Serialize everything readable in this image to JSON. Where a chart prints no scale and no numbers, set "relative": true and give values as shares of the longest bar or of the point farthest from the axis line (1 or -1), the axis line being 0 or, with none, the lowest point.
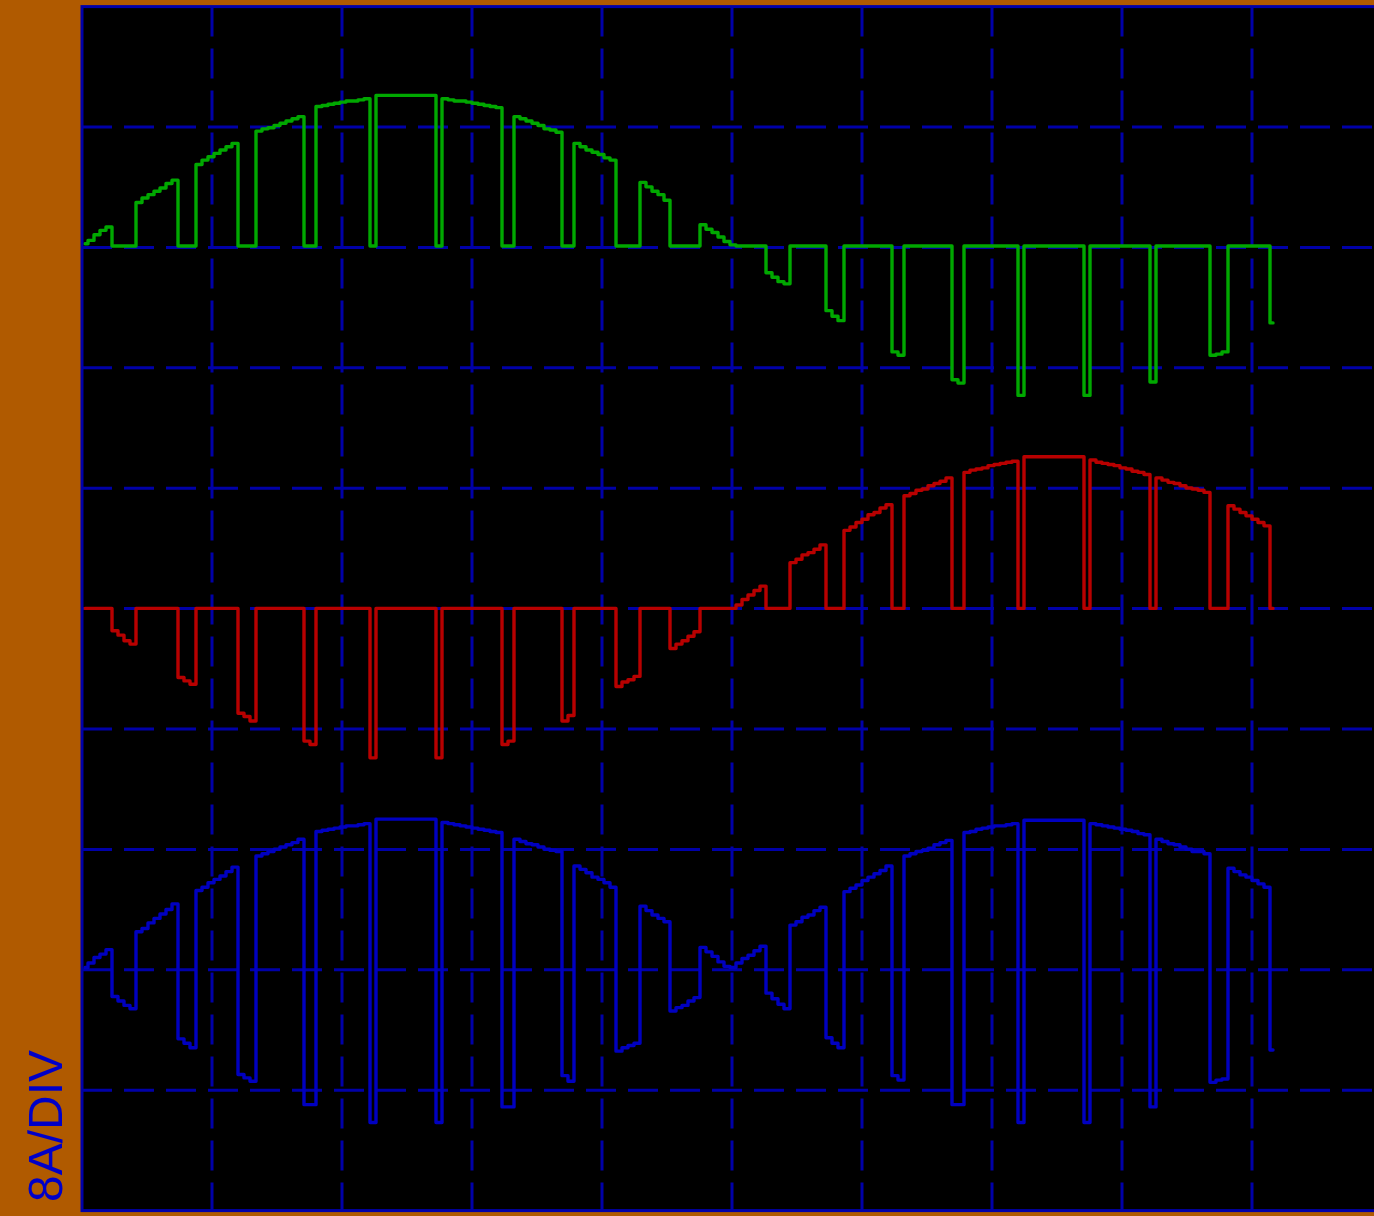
{
  "chart_data": {
    "type": "step",
    "ylabel": "8A/DIV",
    "relative": true,
    "grid": true,
    "categories": [
      null,
      null,
      null,
      null,
      null,
      null,
      null,
      null,
      null,
      null,
      null,
      null,
      null,
      null,
      null,
      null,
      null,
      null,
      null,
      null,
      null,
      null,
      null,
      null,
      null,
      null,
      null,
      null,
      null,
      null,
      null,
      null,
      null,
      null,
      null,
      null,
      null,
      null,
      null,
      null,
      null,
      null,
      null,
      null,
      null,
      null,
      null,
      null,
      null,
      null,
      null,
      null,
      null,
      null,
      null,
      null,
      null,
      null,
      null,
      null,
      null,
      null,
      null,
      null,
      null,
      null,
      null,
      null,
      null,
      null,
      null,
      null,
      null,
      null,
      null,
      null,
      null,
      null,
      null,
      null,
      null,
      null,
      null,
      null,
      null,
      null,
      null,
      null,
      null,
      null,
      null,
      null,
      null,
      null,
      null,
      null,
      null,
      null,
      null,
      null,
      null,
      null,
      null,
      null,
      null,
      null,
      null,
      null,
      null,
      null,
      null,
      null,
      null,
      null,
      null,
      null,
      null,
      null,
      null,
      null,
      null,
      null,
      null,
      null,
      null,
      null,
      null,
      null,
      null,
      null,
      null,
      null,
      null,
      null,
      null,
      null,
      null,
      null,
      null,
      null,
      null,
      null,
      null,
      null,
      null,
      null,
      null,
      null,
      null,
      null,
      null,
      null,
      null,
      null,
      null,
      null,
      null,
      null,
      null,
      null,
      null,
      null,
      null,
      null,
      null,
      null,
      null,
      null,
      null,
      null,
      null,
      null,
      null,
      null,
      null,
      null,
      null,
      null,
      null,
      null,
      null,
      null,
      null,
      null,
      null,
      null,
      null,
      null,
      null,
      null,
      null,
      null,
      null,
      null,
      null,
      null,
      null,
      null,
      null
    ],
    "series": [
      {
        "color": "#00a800",
        "values": [
          0.867,
          0.87,
          0.875,
          0.879,
          0.882,
          0.865,
          0.865,
          0.865,
          0.865,
          0.904,
          0.908,
          0.911,
          0.914,
          0.917,
          0.921,
          0.924,
          0.865,
          0.865,
          0.865,
          0.938,
          0.942,
          0.945,
          0.948,
          0.951,
          0.954,
          0.957,
          0.865,
          0.865,
          0.865,
          0.968,
          0.97,
          0.971,
          0.973,
          0.975,
          0.977,
          0.979,
          0.981,
          0.865,
          0.865,
          0.99,
          0.991,
          0.992,
          0.993,
          0.994,
          0.995,
          0.995,
          0.996,
          0.997,
          0.865,
          1,
          1,
          1,
          1,
          1,
          1,
          1,
          1,
          1,
          1,
          0.865,
          0.997,
          0.996,
          0.995,
          0.995,
          0.994,
          0.993,
          0.992,
          0.991,
          0.99,
          0.989,
          0.865,
          0.865,
          0.981,
          0.979,
          0.977,
          0.975,
          0.973,
          0.97,
          0.969,
          0.967,
          0.865,
          0.865,
          0.957,
          0.954,
          0.951,
          0.949,
          0.947,
          0.944,
          0.942,
          0.865,
          0.865,
          0.865,
          0.865,
          0.922,
          0.918,
          0.914,
          0.911,
          0.906,
          0.865,
          0.865,
          0.865,
          0.865,
          0.865,
          0.884,
          0.88,
          0.877,
          0.873,
          0.869,
          0.866,
          0.865,
          0.865,
          0.865,
          0.865,
          0.865,
          0.841,
          0.837,
          0.833,
          0.831,
          0.865,
          0.865,
          0.865,
          0.865,
          0.865,
          0.865,
          0.807,
          0.802,
          0.798,
          0.865,
          0.865,
          0.865,
          0.865,
          0.865,
          0.865,
          0.865,
          0.865,
          0.77,
          0.767,
          0.865,
          0.865,
          0.865,
          0.865,
          0.865,
          0.865,
          0.865,
          0.865,
          0.745,
          0.742,
          0.865,
          0.865,
          0.865,
          0.865,
          0.865,
          0.865,
          0.865,
          0.865,
          0.865,
          0.731,
          0.865,
          0.865,
          0.865,
          0.865,
          0.865,
          0.865,
          0.865,
          0.865,
          0.865,
          0.865,
          0.731,
          0.865,
          0.865,
          0.865,
          0.865,
          0.865,
          0.865,
          0.865,
          0.865,
          0.865,
          0.865,
          0.743,
          0.865,
          0.865,
          0.865,
          0.865,
          0.865,
          0.865,
          0.865,
          0.865,
          0.865,
          0.767,
          0.768,
          0.77,
          0.865,
          0.865,
          0.865,
          0.865,
          0.865,
          0.865,
          0.865,
          0.796
        ]
      },
      {
        "color": "#b80000",
        "values": [
          0.54,
          0.54,
          0.54,
          0.54,
          0.54,
          0.52,
          0.516,
          0.511,
          0.508,
          0.54,
          0.54,
          0.54,
          0.54,
          0.54,
          0.54,
          0.54,
          0.478,
          0.475,
          0.472,
          0.54,
          0.54,
          0.54,
          0.54,
          0.54,
          0.54,
          0.54,
          0.446,
          0.443,
          0.439,
          0.54,
          0.54,
          0.54,
          0.54,
          0.54,
          0.54,
          0.54,
          0.54,
          0.421,
          0.418,
          0.54,
          0.54,
          0.54,
          0.54,
          0.54,
          0.54,
          0.54,
          0.54,
          0.54,
          0.406,
          0.54,
          0.54,
          0.54,
          0.54,
          0.54,
          0.54,
          0.54,
          0.54,
          0.54,
          0.54,
          0.406,
          0.54,
          0.54,
          0.54,
          0.54,
          0.54,
          0.54,
          0.54,
          0.54,
          0.54,
          0.54,
          0.418,
          0.421,
          0.54,
          0.54,
          0.54,
          0.54,
          0.54,
          0.54,
          0.54,
          0.54,
          0.439,
          0.444,
          0.54,
          0.54,
          0.54,
          0.54,
          0.54,
          0.54,
          0.54,
          0.47,
          0.474,
          0.476,
          0.479,
          0.54,
          0.54,
          0.54,
          0.54,
          0.54,
          0.504,
          0.508,
          0.511,
          0.515,
          0.519,
          0.54,
          0.54,
          0.54,
          0.54,
          0.54,
          0.54,
          0.543,
          0.548,
          0.552,
          0.556,
          0.56,
          0.54,
          0.54,
          0.54,
          0.54,
          0.581,
          0.584,
          0.588,
          0.59,
          0.593,
          0.597,
          0.54,
          0.54,
          0.54,
          0.61,
          0.613,
          0.617,
          0.62,
          0.624,
          0.626,
          0.63,
          0.633,
          0.54,
          0.54,
          0.641,
          0.643,
          0.646,
          0.647,
          0.65,
          0.652,
          0.654,
          0.657,
          0.54,
          0.54,
          0.662,
          0.664,
          0.665,
          0.666,
          0.668,
          0.669,
          0.67,
          0.671,
          0.672,
          0.54,
          0.676,
          0.676,
          0.676,
          0.676,
          0.676,
          0.676,
          0.676,
          0.676,
          0.676,
          0.676,
          0.54,
          0.673,
          0.671,
          0.67,
          0.669,
          0.668,
          0.666,
          0.665,
          0.663,
          0.662,
          0.66,
          0.54,
          0.657,
          0.655,
          0.653,
          0.652,
          0.65,
          0.648,
          0.647,
          0.646,
          0.644,
          0.54,
          0.54,
          0.54,
          0.632,
          0.629,
          0.626,
          0.623,
          0.62,
          0.617,
          0.614,
          0.54
        ]
      },
      {
        "color": "#0000c0",
        "values": [
          0.218,
          0.222,
          0.227,
          0.23,
          0.234,
          0.192,
          0.188,
          0.184,
          0.181,
          0.25,
          0.253,
          0.258,
          0.262,
          0.266,
          0.27,
          0.275,
          0.154,
          0.15,
          0.146,
          0.287,
          0.29,
          0.294,
          0.297,
          0.3,
          0.304,
          0.308,
          0.122,
          0.119,
          0.116,
          0.318,
          0.32,
          0.322,
          0.324,
          0.326,
          0.328,
          0.33,
          0.333,
          0.095,
          0.095,
          0.34,
          0.341,
          0.342,
          0.343,
          0.344,
          0.345,
          0.345,
          0.346,
          0.347,
          0.079,
          0.351,
          0.351,
          0.351,
          0.351,
          0.351,
          0.351,
          0.351,
          0.351,
          0.351,
          0.351,
          0.079,
          0.348,
          0.347,
          0.346,
          0.345,
          0.344,
          0.343,
          0.342,
          0.341,
          0.34,
          0.339,
          0.093,
          0.093,
          0.333,
          0.331,
          0.329,
          0.328,
          0.326,
          0.324,
          0.323,
          0.322,
          0.121,
          0.116,
          0.309,
          0.306,
          0.303,
          0.299,
          0.297,
          0.294,
          0.29,
          0.143,
          0.146,
          0.148,
          0.15,
          0.273,
          0.269,
          0.265,
          0.262,
          0.259,
          0.179,
          0.182,
          0.184,
          0.188,
          0.191,
          0.236,
          0.232,
          0.228,
          0.223,
          0.219,
          0.218,
          0.222,
          0.226,
          0.229,
          0.233,
          0.237,
          0.195,
          0.19,
          0.185,
          0.181,
          0.256,
          0.259,
          0.263,
          0.265,
          0.269,
          0.272,
          0.155,
          0.15,
          0.146,
          0.286,
          0.289,
          0.292,
          0.296,
          0.299,
          0.302,
          0.305,
          0.309,
          0.121,
          0.117,
          0.318,
          0.32,
          0.322,
          0.323,
          0.325,
          0.328,
          0.33,
          0.332,
          0.095,
          0.095,
          0.339,
          0.34,
          0.342,
          0.343,
          0.344,
          0.345,
          0.345,
          0.346,
          0.347,
          0.079,
          0.35,
          0.35,
          0.35,
          0.35,
          0.35,
          0.35,
          0.35,
          0.35,
          0.35,
          0.35,
          0.079,
          0.347,
          0.346,
          0.345,
          0.344,
          0.343,
          0.342,
          0.341,
          0.34,
          0.338,
          0.337,
          0.093,
          0.333,
          0.331,
          0.329,
          0.328,
          0.326,
          0.324,
          0.322,
          0.322,
          0.32,
          0.115,
          0.117,
          0.118,
          0.307,
          0.304,
          0.301,
          0.299,
          0.296,
          0.293,
          0.29,
          0.144
        ]
      }
    ]
  }
}
